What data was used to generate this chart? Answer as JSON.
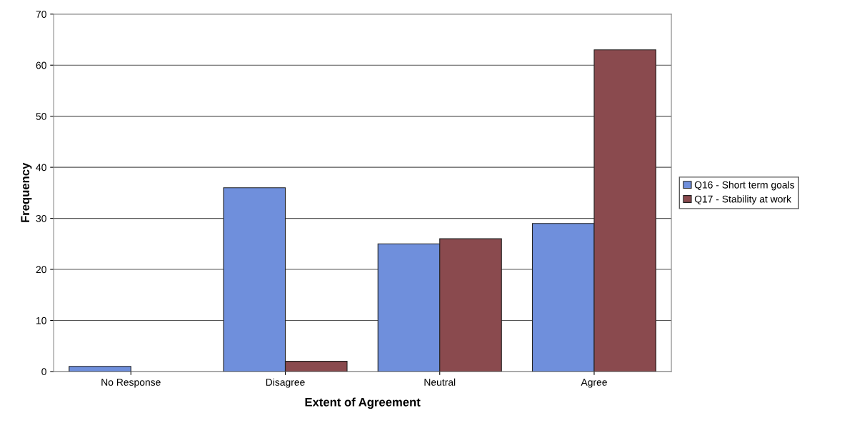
{
  "chart_data": {
    "type": "bar",
    "xlabel": "Extent of Agreement",
    "ylabel": "Frequency",
    "categories": [
      "No Response",
      "Disagree",
      "Neutral",
      "Agree"
    ],
    "series": [
      {
        "name": "Q16 - Short term goals",
        "color": "#6f8fdc",
        "values": [
          1,
          36,
          25,
          29
        ]
      },
      {
        "name": "Q17 - Stability at work",
        "color": "#8a4a4e",
        "values": [
          null,
          2,
          26,
          63
        ]
      }
    ],
    "ylim": [
      0,
      70
    ],
    "yticks": [
      0,
      10,
      20,
      30,
      40,
      50,
      60,
      70
    ],
    "grid": "y",
    "legend": "right"
  }
}
